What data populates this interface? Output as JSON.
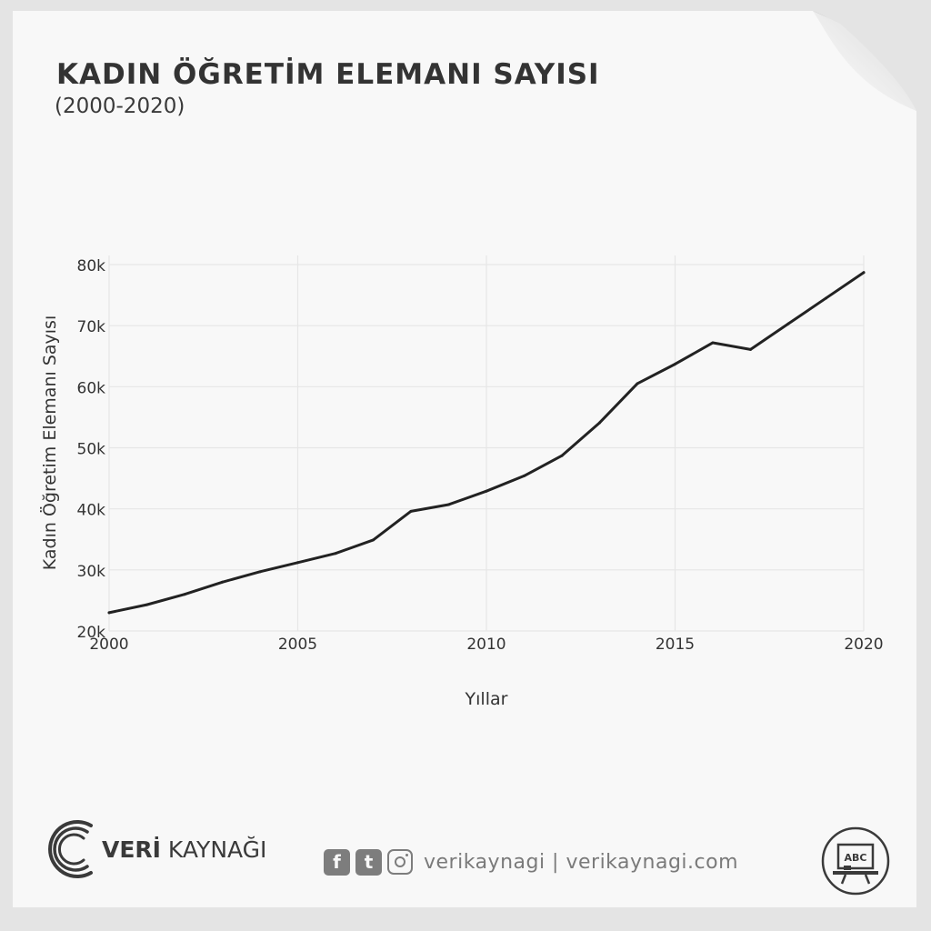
{
  "header": {
    "title": "KADIN ÖĞRETİM ELEMANI SAYISI",
    "subtitle": "(2000-2020)"
  },
  "chart_data": {
    "type": "line",
    "title": "KADIN ÖĞRETİM ELEMANI SAYISI",
    "subtitle": "(2000-2020)",
    "xlabel": "Yıllar",
    "ylabel": "Kadın Öğretim Elemanı Sayısı",
    "x": [
      2000,
      2001,
      2002,
      2003,
      2004,
      2005,
      2006,
      2007,
      2008,
      2009,
      2010,
      2011,
      2012,
      2013,
      2014,
      2015,
      2016,
      2017,
      2018,
      2019,
      2020
    ],
    "series": [
      {
        "values": [
          23000,
          24300,
          26000,
          28000,
          29700,
          31200,
          32700,
          34900,
          39600,
          40700,
          42900,
          45400,
          48700,
          54100,
          60500,
          63700,
          67200,
          66100,
          70300,
          74500,
          78700
        ]
      }
    ],
    "xlim": [
      2000,
      2020
    ],
    "ylim": [
      20000,
      80000
    ],
    "xticks": [
      2000,
      2005,
      2010,
      2015,
      2020
    ],
    "yticks": [
      20000,
      30000,
      40000,
      50000,
      60000,
      70000,
      80000
    ],
    "xtick_labels": [
      "2000",
      "2005",
      "2010",
      "2015",
      "2020"
    ],
    "ytick_labels": [
      "20k",
      "30k",
      "40k",
      "50k",
      "60k",
      "70k",
      "80k"
    ],
    "grid": true,
    "line_color": "#222222",
    "grid_color": "#e6e6e6"
  },
  "footer": {
    "brand_bold": "VERİ",
    "brand_rest": " KAYNAĞI",
    "social_handle": "verikaynagi | verikaynagi.com",
    "icons": [
      "facebook-icon",
      "twitter-icon",
      "instagram-icon"
    ],
    "facebook_glyph": "f",
    "twitter_glyph": "t",
    "badge_text": "ABC"
  }
}
